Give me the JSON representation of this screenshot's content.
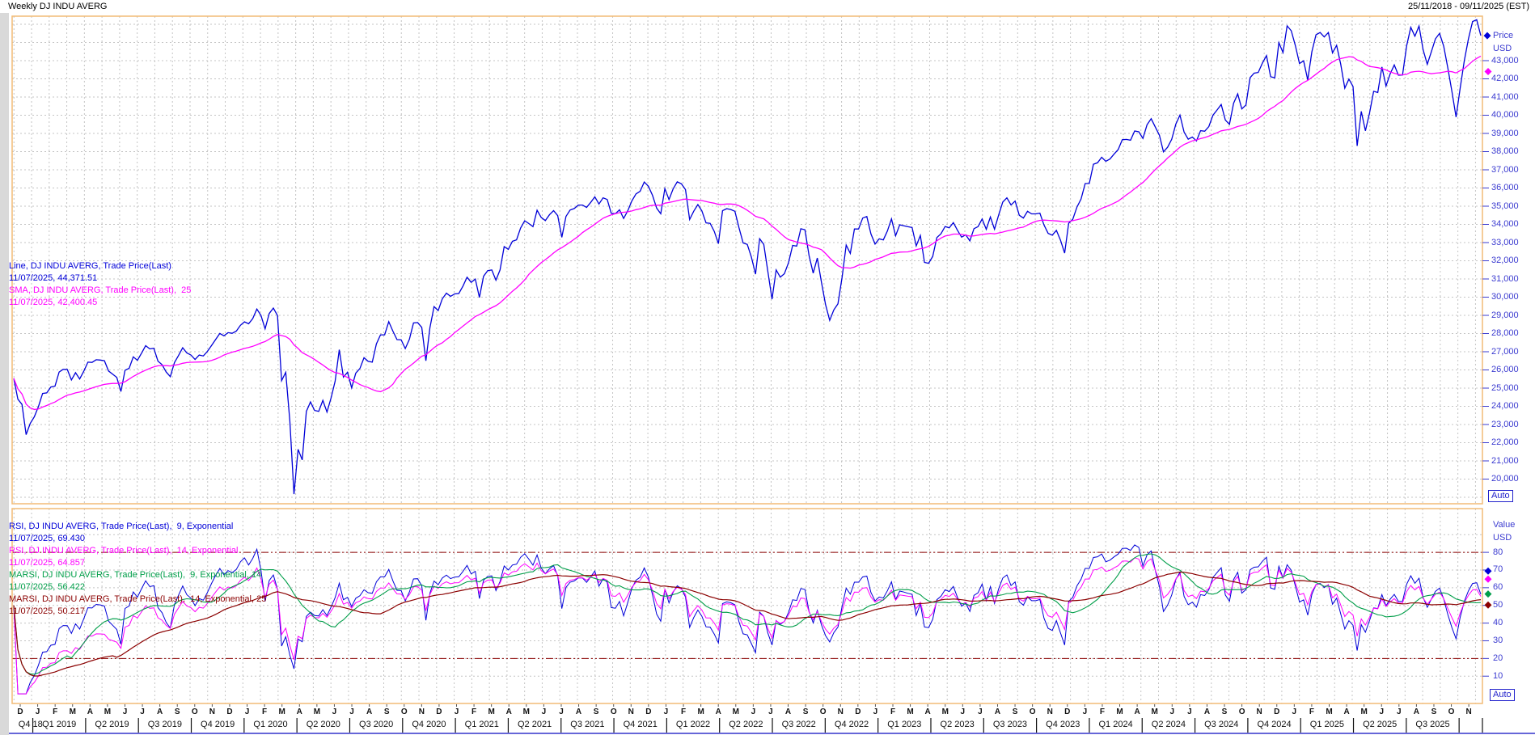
{
  "window": {
    "title": "Weekly DJ INDU AVERG",
    "date_range": "25/11/2018 - 09/11/2025 (EST)"
  },
  "colors": {
    "price_line": "#0000d8",
    "sma_line": "#ff00ff",
    "rsi9": "#0000d8",
    "rsi14": "#ff00ff",
    "marsi9_14": "#009e49",
    "marsi14_25": "#8b0000",
    "panel_border": "#f2bb77",
    "grid": "#c4c4c4",
    "axis_text": "#3b3bd0",
    "reference_line": "#8b0000"
  },
  "main_panel": {
    "legend_lines": [
      {
        "text": "Line, DJ INDU AVERG, Trade Price(Last)",
        "color": "#0000d8"
      },
      {
        "text": "11/07/2025, 44,371.51",
        "color": "#0000d8"
      },
      {
        "text": "SMA, DJ INDU AVERG, Trade Price(Last),  25",
        "color": "#ff00ff"
      },
      {
        "text": "11/07/2025, 42,400.45",
        "color": "#ff00ff"
      }
    ],
    "axis_header": [
      "Price",
      "USD"
    ],
    "ticks": [
      "43,000",
      "42,000",
      "41,000",
      "40,000",
      "39,000",
      "38,000",
      "37,000",
      "36,000",
      "35,000",
      "34,000",
      "33,000",
      "32,000",
      "31,000",
      "30,000",
      "29,000",
      "28,000",
      "27,000",
      "26,000",
      "25,000",
      "24,000",
      "23,000",
      "22,000",
      "21,000",
      "20,000"
    ],
    "auto_button": "Auto",
    "markers": [
      {
        "value": 44371.51,
        "color": "#0000d8"
      },
      {
        "value": 42400.45,
        "color": "#ff00ff"
      }
    ]
  },
  "lower_panel": {
    "legend_lines": [
      {
        "text": "RSI, DJ INDU AVERG, Trade Price(Last),  9, Exponential",
        "color": "#0000d8"
      },
      {
        "text": "11/07/2025, 69.430",
        "color": "#0000d8"
      },
      {
        "text": "RSI, DJ INDU AVERG, Trade Price(Last),  14, Exponential",
        "color": "#ff00ff"
      },
      {
        "text": "11/07/2025, 64.857",
        "color": "#ff00ff"
      },
      {
        "text": "MARSI, DJ INDU AVERG, Trade Price(Last),  9, Exponential, 14",
        "color": "#009e49"
      },
      {
        "text": "11/07/2025, 56.422",
        "color": "#009e49"
      },
      {
        "text": "MARSI, DJ INDU AVERG, Trade Price(Last),  14, Exponential, 25",
        "color": "#8b0000"
      },
      {
        "text": "11/07/2025, 50.217",
        "color": "#8b0000"
      }
    ],
    "axis_header": [
      "Value",
      "USD"
    ],
    "ticks": [
      "80",
      "70",
      "60",
      "50",
      "40",
      "30",
      "20",
      "10"
    ],
    "auto_button": "Auto",
    "reference_lines": [
      80,
      20
    ],
    "markers": [
      {
        "value": 69.43,
        "color": "#0000d8"
      },
      {
        "value": 64.857,
        "color": "#ff00ff"
      },
      {
        "value": 56.422,
        "color": "#009e49"
      },
      {
        "value": 50.217,
        "color": "#8b0000"
      }
    ]
  },
  "x_axis": {
    "months": [
      "D",
      "J",
      "F",
      "M",
      "A",
      "M",
      "J",
      "J",
      "A",
      "S",
      "O",
      "N",
      "D",
      "J",
      "F",
      "M",
      "A",
      "M",
      "J",
      "J",
      "A",
      "S",
      "O",
      "N",
      "D",
      "J",
      "F",
      "M",
      "A",
      "M",
      "J",
      "J",
      "A",
      "S",
      "O",
      "N",
      "D",
      "J",
      "F",
      "M",
      "A",
      "M",
      "J",
      "J",
      "A",
      "S",
      "O",
      "N",
      "D",
      "J",
      "F",
      "M",
      "A",
      "M",
      "J",
      "J",
      "A",
      "S",
      "O",
      "N",
      "D",
      "J",
      "F",
      "M",
      "A",
      "M",
      "J",
      "J",
      "A",
      "S",
      "O",
      "N",
      "D",
      "J",
      "F",
      "M",
      "A",
      "M",
      "J",
      "J",
      "A",
      "S",
      "O",
      "N"
    ],
    "quarters": [
      "Q4 18",
      "Q1 2019",
      "Q2 2019",
      "Q3 2019",
      "Q4 2019",
      "Q1 2020",
      "Q2 2020",
      "Q3 2020",
      "Q4 2020",
      "Q1 2021",
      "Q2 2021",
      "Q3 2021",
      "Q4 2021",
      "Q1 2022",
      "Q2 2022",
      "Q3 2022",
      "Q4 2022",
      "Q1 2023",
      "Q2 2023",
      "Q3 2023",
      "Q4 2023",
      "Q1 2024",
      "Q2 2024",
      "Q3 2024",
      "Q4 2024",
      "Q1 2025",
      "Q2 2025",
      "Q3 2025"
    ]
  },
  "chart_data": {
    "type": "line",
    "title": "Weekly DJ INDU AVERG",
    "date_range": "25/11/2018 - 09/11/2025 (EST)",
    "x_unit": "week",
    "start": "2018-11-30",
    "end": "2025-11-07",
    "panels": [
      {
        "name": "price",
        "ylabel": "Price USD",
        "ytick_range": [
          20000,
          43000
        ],
        "grid": true,
        "series": [
          {
            "name": "Line, DJ INDU AVERG, Trade Price(Last)",
            "color": "#0000d8",
            "last_date": "11/07/2025",
            "last_value": 44371.51
          },
          {
            "name": "SMA 25 of Trade Price(Last)",
            "color": "#ff00ff",
            "derived": "SMA(close,25)",
            "last_date": "11/07/2025",
            "last_value": 42400.45
          }
        ]
      },
      {
        "name": "rsi",
        "ylabel": "Value USD",
        "ylim": [
          0,
          100
        ],
        "ytick_range": [
          10,
          80
        ],
        "reference_lines": [
          80,
          20
        ],
        "grid": true,
        "series": [
          {
            "name": "RSI 9 Exponential",
            "color": "#0000d8",
            "derived": "RSI(close,9)",
            "last_value": 69.43
          },
          {
            "name": "RSI 14 Exponential",
            "color": "#ff00ff",
            "derived": "RSI(close,14)",
            "last_value": 64.857
          },
          {
            "name": "MARSI 9 Exponential 14",
            "color": "#009e49",
            "derived": "MA14(RSI9)",
            "last_value": 56.422
          },
          {
            "name": "MARSI 14 Exponential 25",
            "color": "#8b0000",
            "derived": "MA25(RSI14)",
            "last_value": 50.217
          }
        ]
      }
    ],
    "weekly_close": [
      25538,
      24389,
      24101,
      22445,
      23062,
      23433,
      23996,
      24706,
      24737,
      25064,
      25106,
      25883,
      26032,
      26026,
      25450,
      25849,
      25502,
      25929,
      26425,
      26412,
      26560,
      26543,
      26505,
      25942,
      25764,
      25586,
      24815,
      25984,
      26090,
      26720,
      26527,
      26922,
      27332,
      27154,
      27192,
      26485,
      26287,
      25886,
      25629,
      26403,
      26797,
      27219,
      26935,
      26820,
      26574,
      26817,
      26770,
      27022,
      27347,
      27681,
      28005,
      27876,
      28051,
      28015,
      28135,
      28455,
      28645,
      28538,
      28824,
      29348,
      28990,
      28256,
      29103,
      29398,
      28992,
      25409,
      25865,
      23186,
      19174,
      21637,
      21053,
      23719,
      24242,
      23775,
      23724,
      24331,
      23685,
      24465,
      25383,
      27111,
      25605,
      25871,
      25016,
      25827,
      26075,
      26672,
      26470,
      26428,
      27433,
      27931,
      27930,
      28654,
      28133,
      27666,
      27657,
      27174,
      27683,
      28587,
      28606,
      28336,
      26502,
      28323,
      29480,
      29263,
      29910,
      30218,
      30046,
      30179,
      30200,
      30606,
      31098,
      30814,
      30997,
      29983,
      31148,
      31458,
      31494,
      30932,
      31496,
      32779,
      32628,
      33073,
      33153,
      33801,
      34201,
      34043,
      33875,
      34778,
      34382,
      34208,
      34530,
      34756,
      34480,
      33290,
      34434,
      34786,
      34870,
      35062,
      35061,
      34935,
      35209,
      35515,
      35120,
      35456,
      35369,
      34608,
      34585,
      34798,
      34326,
      34746,
      35295,
      35677,
      35820,
      36328,
      36100,
      35602,
      34899,
      34580,
      35971,
      35365,
      35950,
      36338,
      36232,
      35912,
      34265,
      34725,
      35090,
      34738,
      34079,
      34059,
      33615,
      32944,
      34755,
      34861,
      34818,
      34721,
      33811,
      32977,
      32899,
      32197,
      31262,
      33213,
      32900,
      31393,
      29889,
      31500,
      31097,
      31288,
      31899,
      32845,
      32803,
      33761,
      33707,
      32283,
      31318,
      32152,
      30822,
      29590,
      28726,
      29297,
      29635,
      31083,
      32862,
      32403,
      33748,
      33746,
      34347,
      34430,
      33476,
      32920,
      33204,
      33147,
      33631,
      34303,
      33375,
      33978,
      33926,
      33869,
      33827,
      32817,
      33391,
      31910,
      31862,
      32238,
      33274,
      33485,
      33886,
      33809,
      34098,
      33674,
      33300,
      33427,
      33093,
      33763,
      33877,
      34299,
      33727,
      34408,
      33735,
      34509,
      35228,
      35459,
      35066,
      35281,
      34501,
      34347,
      34722,
      34576,
      34577,
      34618,
      33964,
      33508,
      33408,
      33670,
      33127,
      32418,
      34061,
      34283,
      34947,
      35390,
      36246,
      36248,
      37306,
      37386,
      37690,
      37466,
      37593,
      37864,
      38109,
      38654,
      38671,
      38628,
      39132,
      39087,
      38723,
      39476,
      39807,
      39351,
      38904,
      37986,
      38240,
      38676,
      39513,
      40004,
      39069,
      38686,
      38799,
      38589,
      39150,
      39119,
      39376,
      40001,
      40288,
      40589,
      39737,
      39498,
      40660,
      41175,
      40345,
      40563,
      42063,
      42313,
      42353,
      42864,
      43276,
      42114,
      42052,
      43989,
      43445,
      44911,
      44643,
      43828,
      42840,
      42992,
      41938,
      43488,
      44424,
      44545,
      44303,
      44546,
      43428,
      43841,
      42802,
      41488,
      41985,
      41584,
      38315,
      40213,
      39142,
      40114,
      41317,
      41249,
      42655,
      41603,
      42270,
      42763,
      42198,
      42207,
      43819,
      44829,
      44342,
      44902,
      43589,
      42800,
      43500,
      44200,
      44500,
      43800,
      42600,
      41300,
      39900,
      41500,
      43000,
      44200,
      45150,
      45250,
      44371.51
    ]
  }
}
